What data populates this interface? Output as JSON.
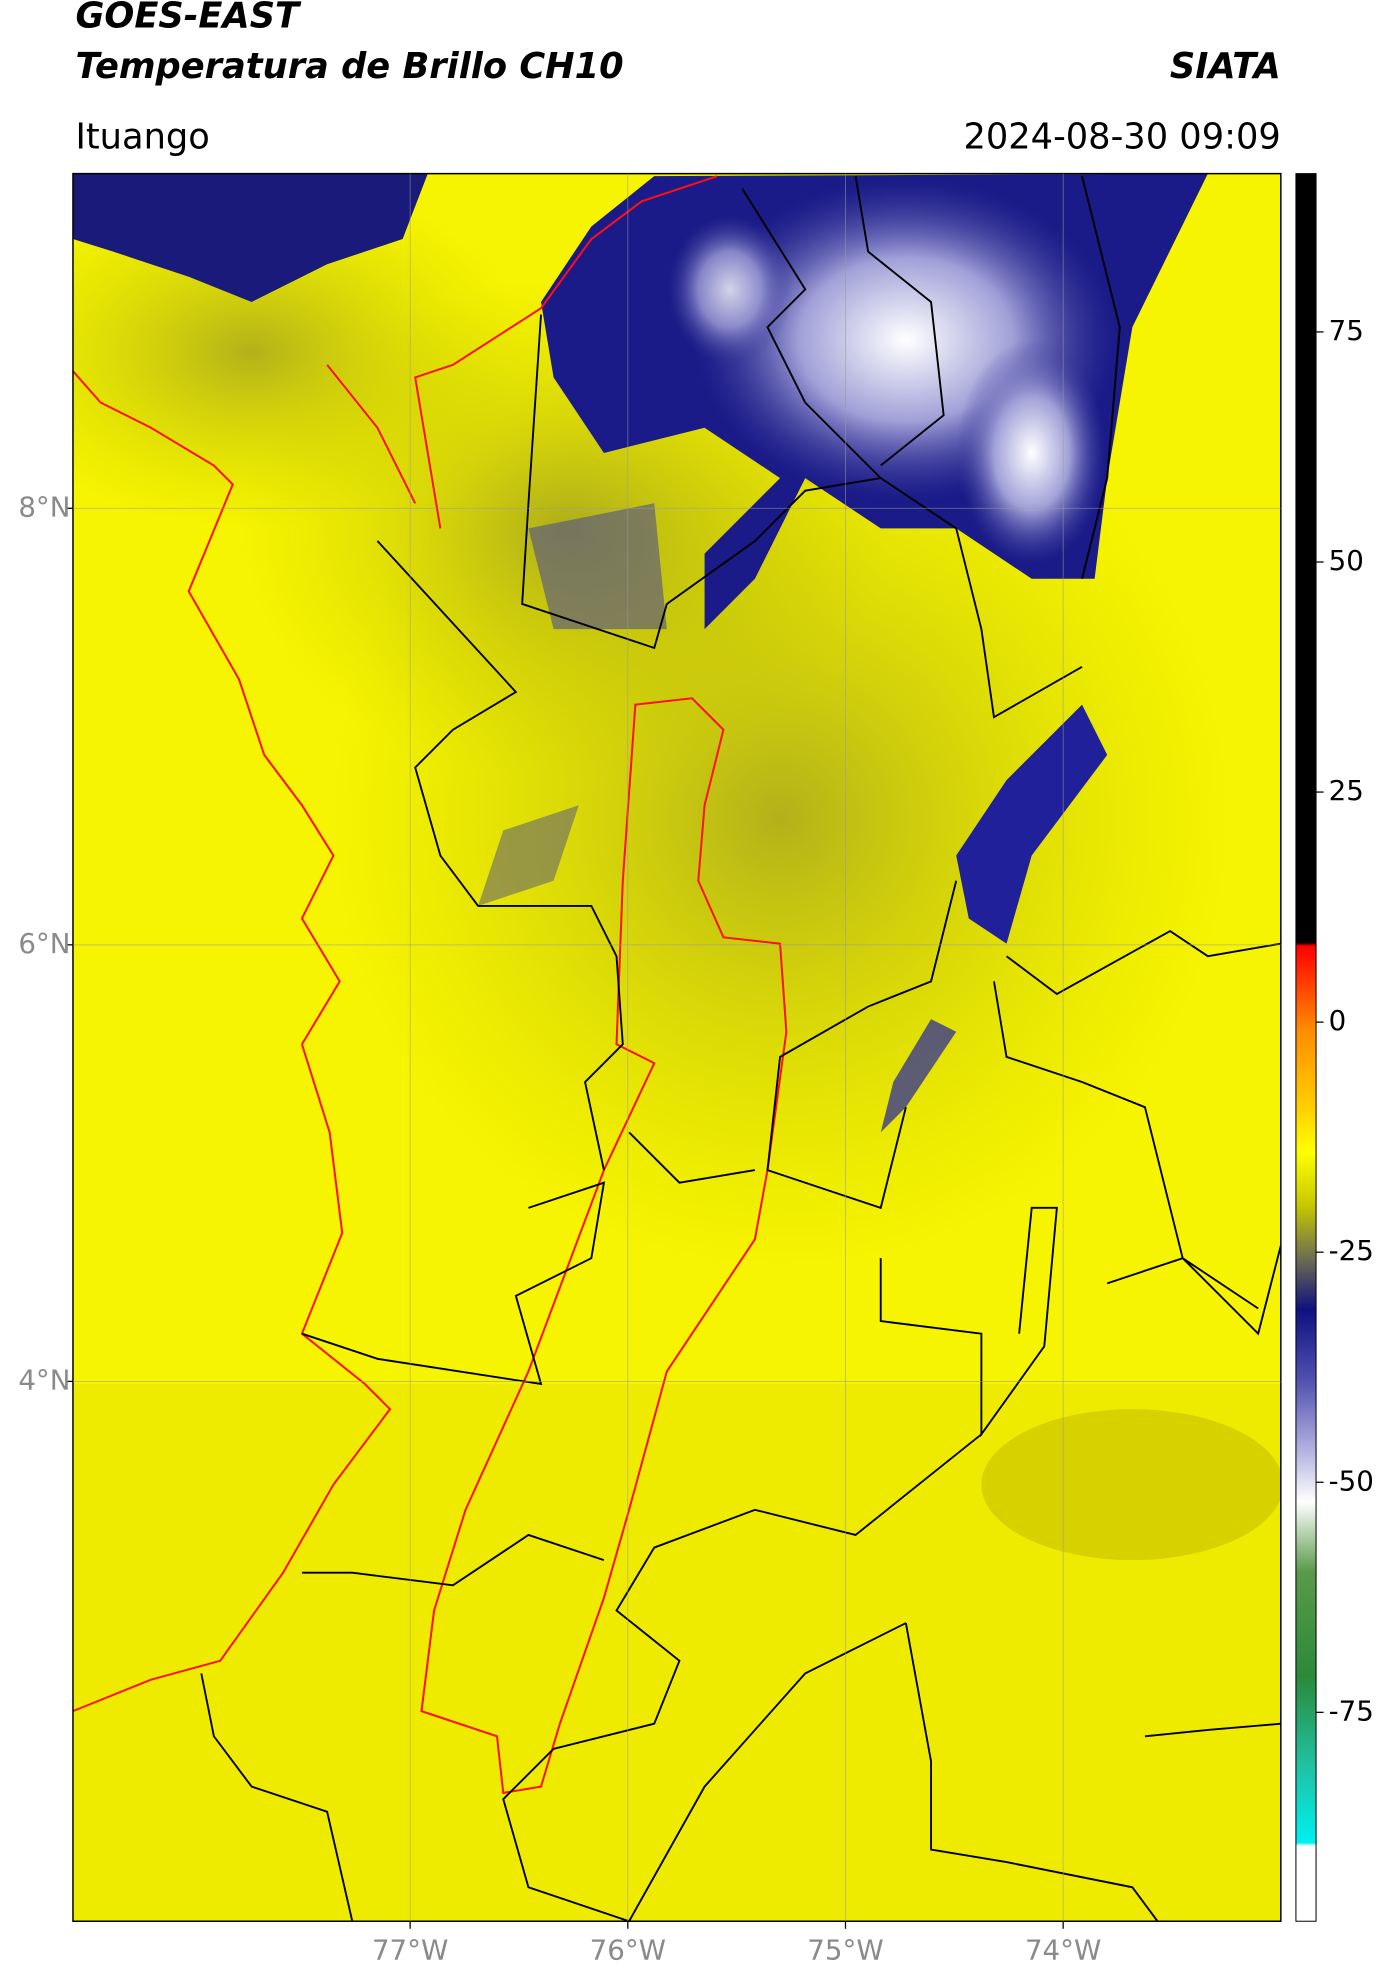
{
  "header": {
    "title": "GOES-EAST",
    "subtitle": "Temperatura de Brillo CH10",
    "credit": "SIATA",
    "region": "Ituango",
    "timestamp": "2024-08-30 09:09"
  },
  "map": {
    "xlim": [
      -78.549,
      -73.0
    ],
    "ylim": [
      1.527,
      9.533
    ],
    "grid": true,
    "xticks": [
      {
        "value": -77,
        "label": "77°W"
      },
      {
        "value": -76,
        "label": "76°W"
      },
      {
        "value": -75,
        "label": "75°W"
      },
      {
        "value": -74,
        "label": "74°W"
      }
    ],
    "yticks": [
      {
        "value": 8,
        "label": "8°N"
      },
      {
        "value": 6,
        "label": "6°N"
      },
      {
        "value": 4,
        "label": "4°N"
      }
    ]
  },
  "colorbar": {
    "lim": [
      -97.7,
      92.2
    ],
    "ticks": [
      75,
      50,
      25,
      0,
      -25,
      -50,
      -75
    ]
  }
}
